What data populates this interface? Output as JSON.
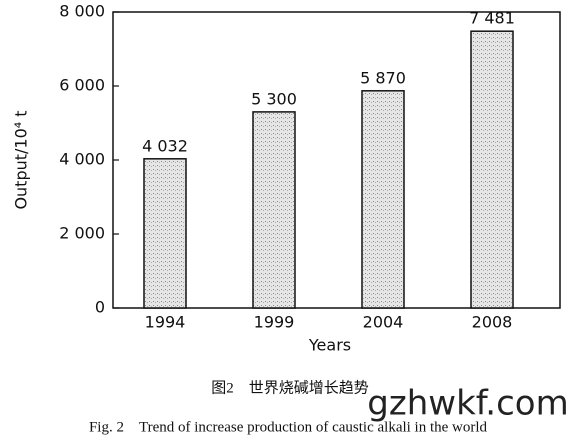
{
  "chart_data": {
    "type": "bar",
    "categories": [
      "1994",
      "1999",
      "2004",
      "2008"
    ],
    "values": [
      4032,
      5300,
      5870,
      7481
    ],
    "value_labels": [
      "4 032",
      "5 300",
      "5 870",
      "7 481"
    ],
    "color": "#d4d4d4",
    "ylim": [
      0,
      8000
    ],
    "yticks": [
      0,
      {
        "value": 2000,
        "label": "2 000"
      },
      {
        "value": 4000,
        "label": "4 000"
      },
      {
        "value": 6000,
        "label": "6 000"
      },
      {
        "value": 8000,
        "label": "8 000"
      }
    ],
    "y_label": "Output/10⁴ t",
    "x_label": "Years",
    "caption_cn": "图2　世界烧碱增长趋势",
    "caption_en": "Fig. 2　Trend of increase production of caustic alkali in the world",
    "watermark": "gzhwkf.com"
  }
}
